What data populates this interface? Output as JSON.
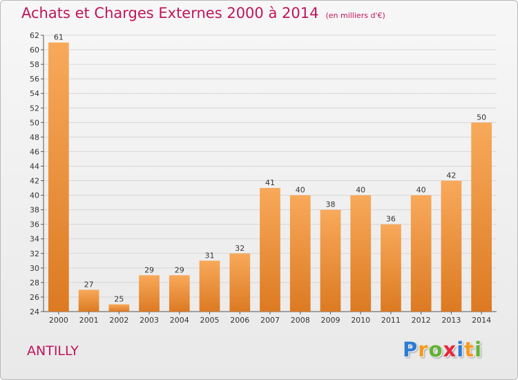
{
  "header": {
    "title": "Achats et Charges Externes 2000 à 2014",
    "subtitle": "(en milliers d'€)"
  },
  "footer": {
    "commune": "ANTILLY",
    "logo_letters": [
      {
        "char": "P",
        "color": "#2e7bd6"
      },
      {
        "char": "r",
        "color": "#f39a1e"
      },
      {
        "char": "o",
        "color": "#62b233"
      },
      {
        "char": "x",
        "color": "#e8283b"
      },
      {
        "char": "i",
        "color": "#2e7bd6"
      },
      {
        "char": "t",
        "color": "#f39a1e"
      },
      {
        "char": "i",
        "color": "#62b233"
      }
    ]
  },
  "colors": {
    "accent": "#c0145a",
    "bar_light": "#f8a95a",
    "bar_dark": "#dc7a22",
    "gridline": "#d6d6d6"
  },
  "chart_data": {
    "type": "bar",
    "title": "Achats et Charges Externes 2000 à 2014",
    "subtitle": "(en milliers d'€)",
    "categories": [
      "2000",
      "2001",
      "2002",
      "2003",
      "2004",
      "2005",
      "2006",
      "2007",
      "2008",
      "2009",
      "2010",
      "2011",
      "2012",
      "2013",
      "2014"
    ],
    "values": [
      61,
      27,
      25,
      29,
      29,
      31,
      32,
      41,
      40,
      38,
      40,
      36,
      40,
      42,
      50
    ],
    "ylim": [
      24,
      62
    ],
    "ytick_step": 2,
    "grid": true,
    "xlabel": "",
    "ylabel": "",
    "data_labels": true
  }
}
